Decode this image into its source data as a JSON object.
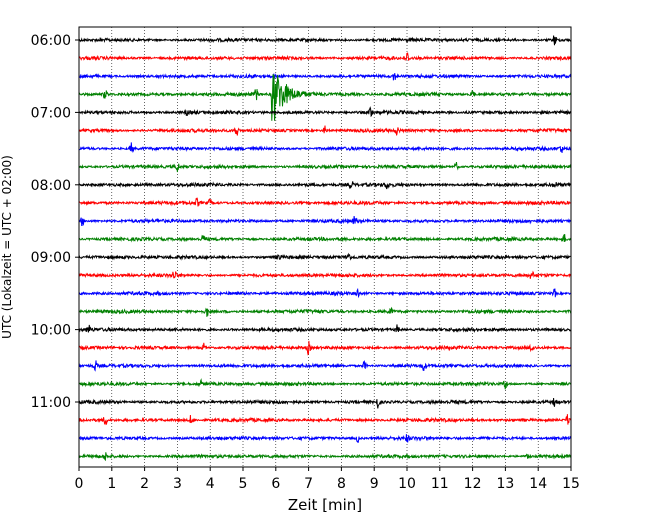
{
  "chart_data": {
    "type": "line",
    "subtype": "helicorder",
    "xlabel": "Zeit  [min]",
    "ylabel": "UTC (Lokalzeit = UTC + 02:00)",
    "xlim": [
      0,
      15
    ],
    "xticks": [
      0,
      1,
      2,
      3,
      4,
      5,
      6,
      7,
      8,
      9,
      10,
      11,
      12,
      13,
      14,
      15
    ],
    "ytick_labels": [
      "06:00",
      "07:00",
      "08:00",
      "09:00",
      "10:00",
      "11:00"
    ],
    "grid": "vertical dotted",
    "row_interval_minutes": 15,
    "colors": [
      "#000000",
      "#ff0000",
      "#0000ff",
      "#008000"
    ],
    "rows": [
      {
        "start": "06:00",
        "color": "#000000",
        "events": [
          [
            14.5,
            0.9
          ]
        ]
      },
      {
        "start": "06:15",
        "color": "#ff0000",
        "events": [
          [
            10.0,
            0.9
          ]
        ]
      },
      {
        "start": "06:30",
        "color": "#0000ff",
        "events": [
          [
            9.6,
            0.7
          ]
        ]
      },
      {
        "start": "06:45",
        "color": "#008000",
        "events": [
          [
            5.9,
            3.5
          ],
          [
            5.4,
            0.8
          ],
          [
            0.8,
            0.8
          ],
          [
            12.0,
            0.8
          ]
        ]
      },
      {
        "start": "07:00",
        "color": "#000000",
        "events": [
          [
            8.9,
            0.8
          ],
          [
            3.3,
            0.5
          ]
        ]
      },
      {
        "start": "07:15",
        "color": "#ff0000",
        "events": [
          [
            4.8,
            0.9
          ],
          [
            7.5,
            0.6
          ],
          [
            9.7,
            0.6
          ]
        ]
      },
      {
        "start": "07:30",
        "color": "#0000ff",
        "events": [
          [
            1.6,
            0.8
          ],
          [
            14.7,
            0.6
          ]
        ]
      },
      {
        "start": "07:45",
        "color": "#008000",
        "events": [
          [
            3.0,
            0.7
          ],
          [
            11.5,
            0.6
          ]
        ]
      },
      {
        "start": "08:00",
        "color": "#000000",
        "events": [
          [
            8.3,
            0.7
          ],
          [
            9.4,
            0.5
          ],
          [
            14.5,
            0.5
          ]
        ]
      },
      {
        "start": "08:15",
        "color": "#ff0000",
        "events": [
          [
            3.6,
            0.6
          ],
          [
            4.0,
            0.5
          ]
        ]
      },
      {
        "start": "08:30",
        "color": "#0000ff",
        "events": [
          [
            0.1,
            0.6
          ],
          [
            8.4,
            0.6
          ]
        ]
      },
      {
        "start": "08:45",
        "color": "#008000",
        "events": [
          [
            3.8,
            0.6
          ],
          [
            14.8,
            0.6
          ]
        ]
      },
      {
        "start": "09:00",
        "color": "#000000",
        "events": [
          [
            8.2,
            0.9
          ],
          [
            6.1,
            0.5
          ]
        ]
      },
      {
        "start": "09:15",
        "color": "#ff0000",
        "events": [
          [
            2.9,
            0.8
          ],
          [
            13.8,
            0.6
          ]
        ]
      },
      {
        "start": "09:30",
        "color": "#0000ff",
        "events": [
          [
            8.5,
            0.6
          ],
          [
            14.5,
            0.6
          ]
        ]
      },
      {
        "start": "09:45",
        "color": "#008000",
        "events": [
          [
            3.9,
            0.7
          ],
          [
            9.5,
            0.5
          ]
        ]
      },
      {
        "start": "10:00",
        "color": "#000000",
        "events": [
          [
            0.3,
            0.6
          ],
          [
            9.7,
            0.6
          ]
        ]
      },
      {
        "start": "10:15",
        "color": "#ff0000",
        "events": [
          [
            7.0,
            0.9
          ],
          [
            3.8,
            0.6
          ],
          [
            13.8,
            0.7
          ]
        ]
      },
      {
        "start": "10:30",
        "color": "#0000ff",
        "events": [
          [
            0.5,
            0.7
          ],
          [
            8.7,
            0.7
          ],
          [
            10.5,
            0.6
          ]
        ]
      },
      {
        "start": "10:45",
        "color": "#008000",
        "events": [
          [
            13.0,
            0.8
          ],
          [
            3.7,
            0.5
          ]
        ]
      },
      {
        "start": "11:00",
        "color": "#000000",
        "events": [
          [
            9.1,
            0.9
          ],
          [
            14.5,
            0.6
          ]
        ]
      },
      {
        "start": "11:15",
        "color": "#ff0000",
        "events": [
          [
            0.8,
            0.8
          ],
          [
            14.9,
            0.8
          ],
          [
            3.4,
            0.6
          ]
        ]
      },
      {
        "start": "11:30",
        "color": "#0000ff",
        "events": [
          [
            8.5,
            0.6
          ],
          [
            10.0,
            0.5
          ]
        ]
      },
      {
        "start": "11:45",
        "color": "#008000",
        "events": [
          [
            13.7,
            0.6
          ],
          [
            0.8,
            0.5
          ]
        ]
      }
    ]
  }
}
